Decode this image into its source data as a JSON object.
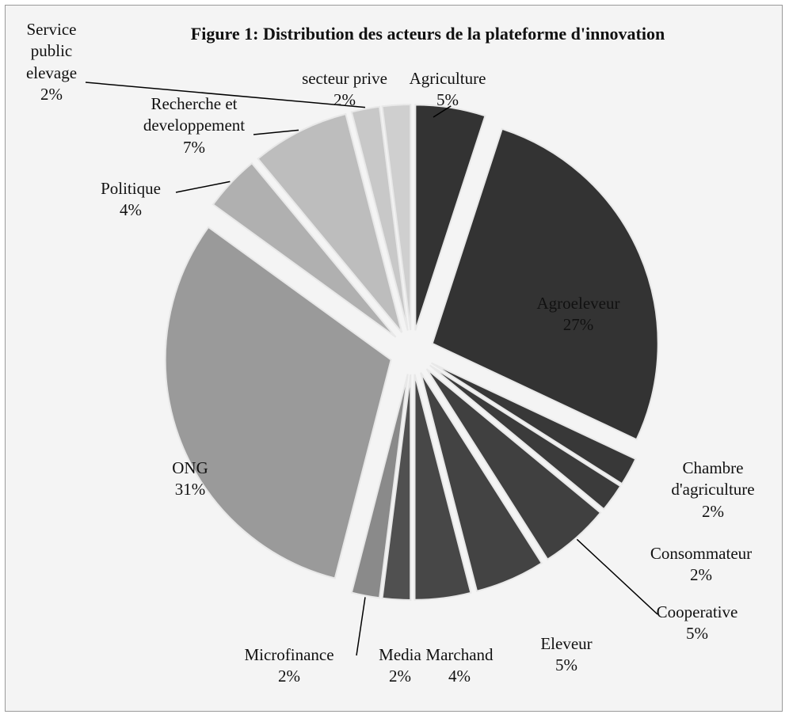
{
  "chart_data": {
    "type": "pie",
    "title": "Figure 1: Distribution des acteurs de la plateforme d'innovation",
    "categories": [
      "Agriculture",
      "Agroeleveur",
      "Chambre d'agriculture",
      "Consommateur",
      "Cooperative",
      "Eleveur",
      "Marchand",
      "Media",
      "Microfinance",
      "ONG",
      "Politique",
      "Recherche et developpement",
      "Service public elevage",
      "secteur prive"
    ],
    "values": [
      5,
      27,
      2,
      2,
      5,
      5,
      4,
      2,
      2,
      31,
      4,
      7,
      2,
      2
    ],
    "value_labels": [
      "5%",
      "27%",
      "2%",
      "2%",
      "5%",
      "5%",
      "4%",
      "2%",
      "2%",
      "31%",
      "4%",
      "7%",
      "2%",
      "2%"
    ],
    "colors": [
      "#333333",
      "#333333",
      "#383838",
      "#3b3b3b",
      "#404040",
      "#434343",
      "#474747",
      "#505050",
      "#8a8a8a",
      "#9a9a9a",
      "#b0b0b0",
      "#bdbdbd",
      "#c8c8c8",
      "#cfcfcf"
    ]
  }
}
